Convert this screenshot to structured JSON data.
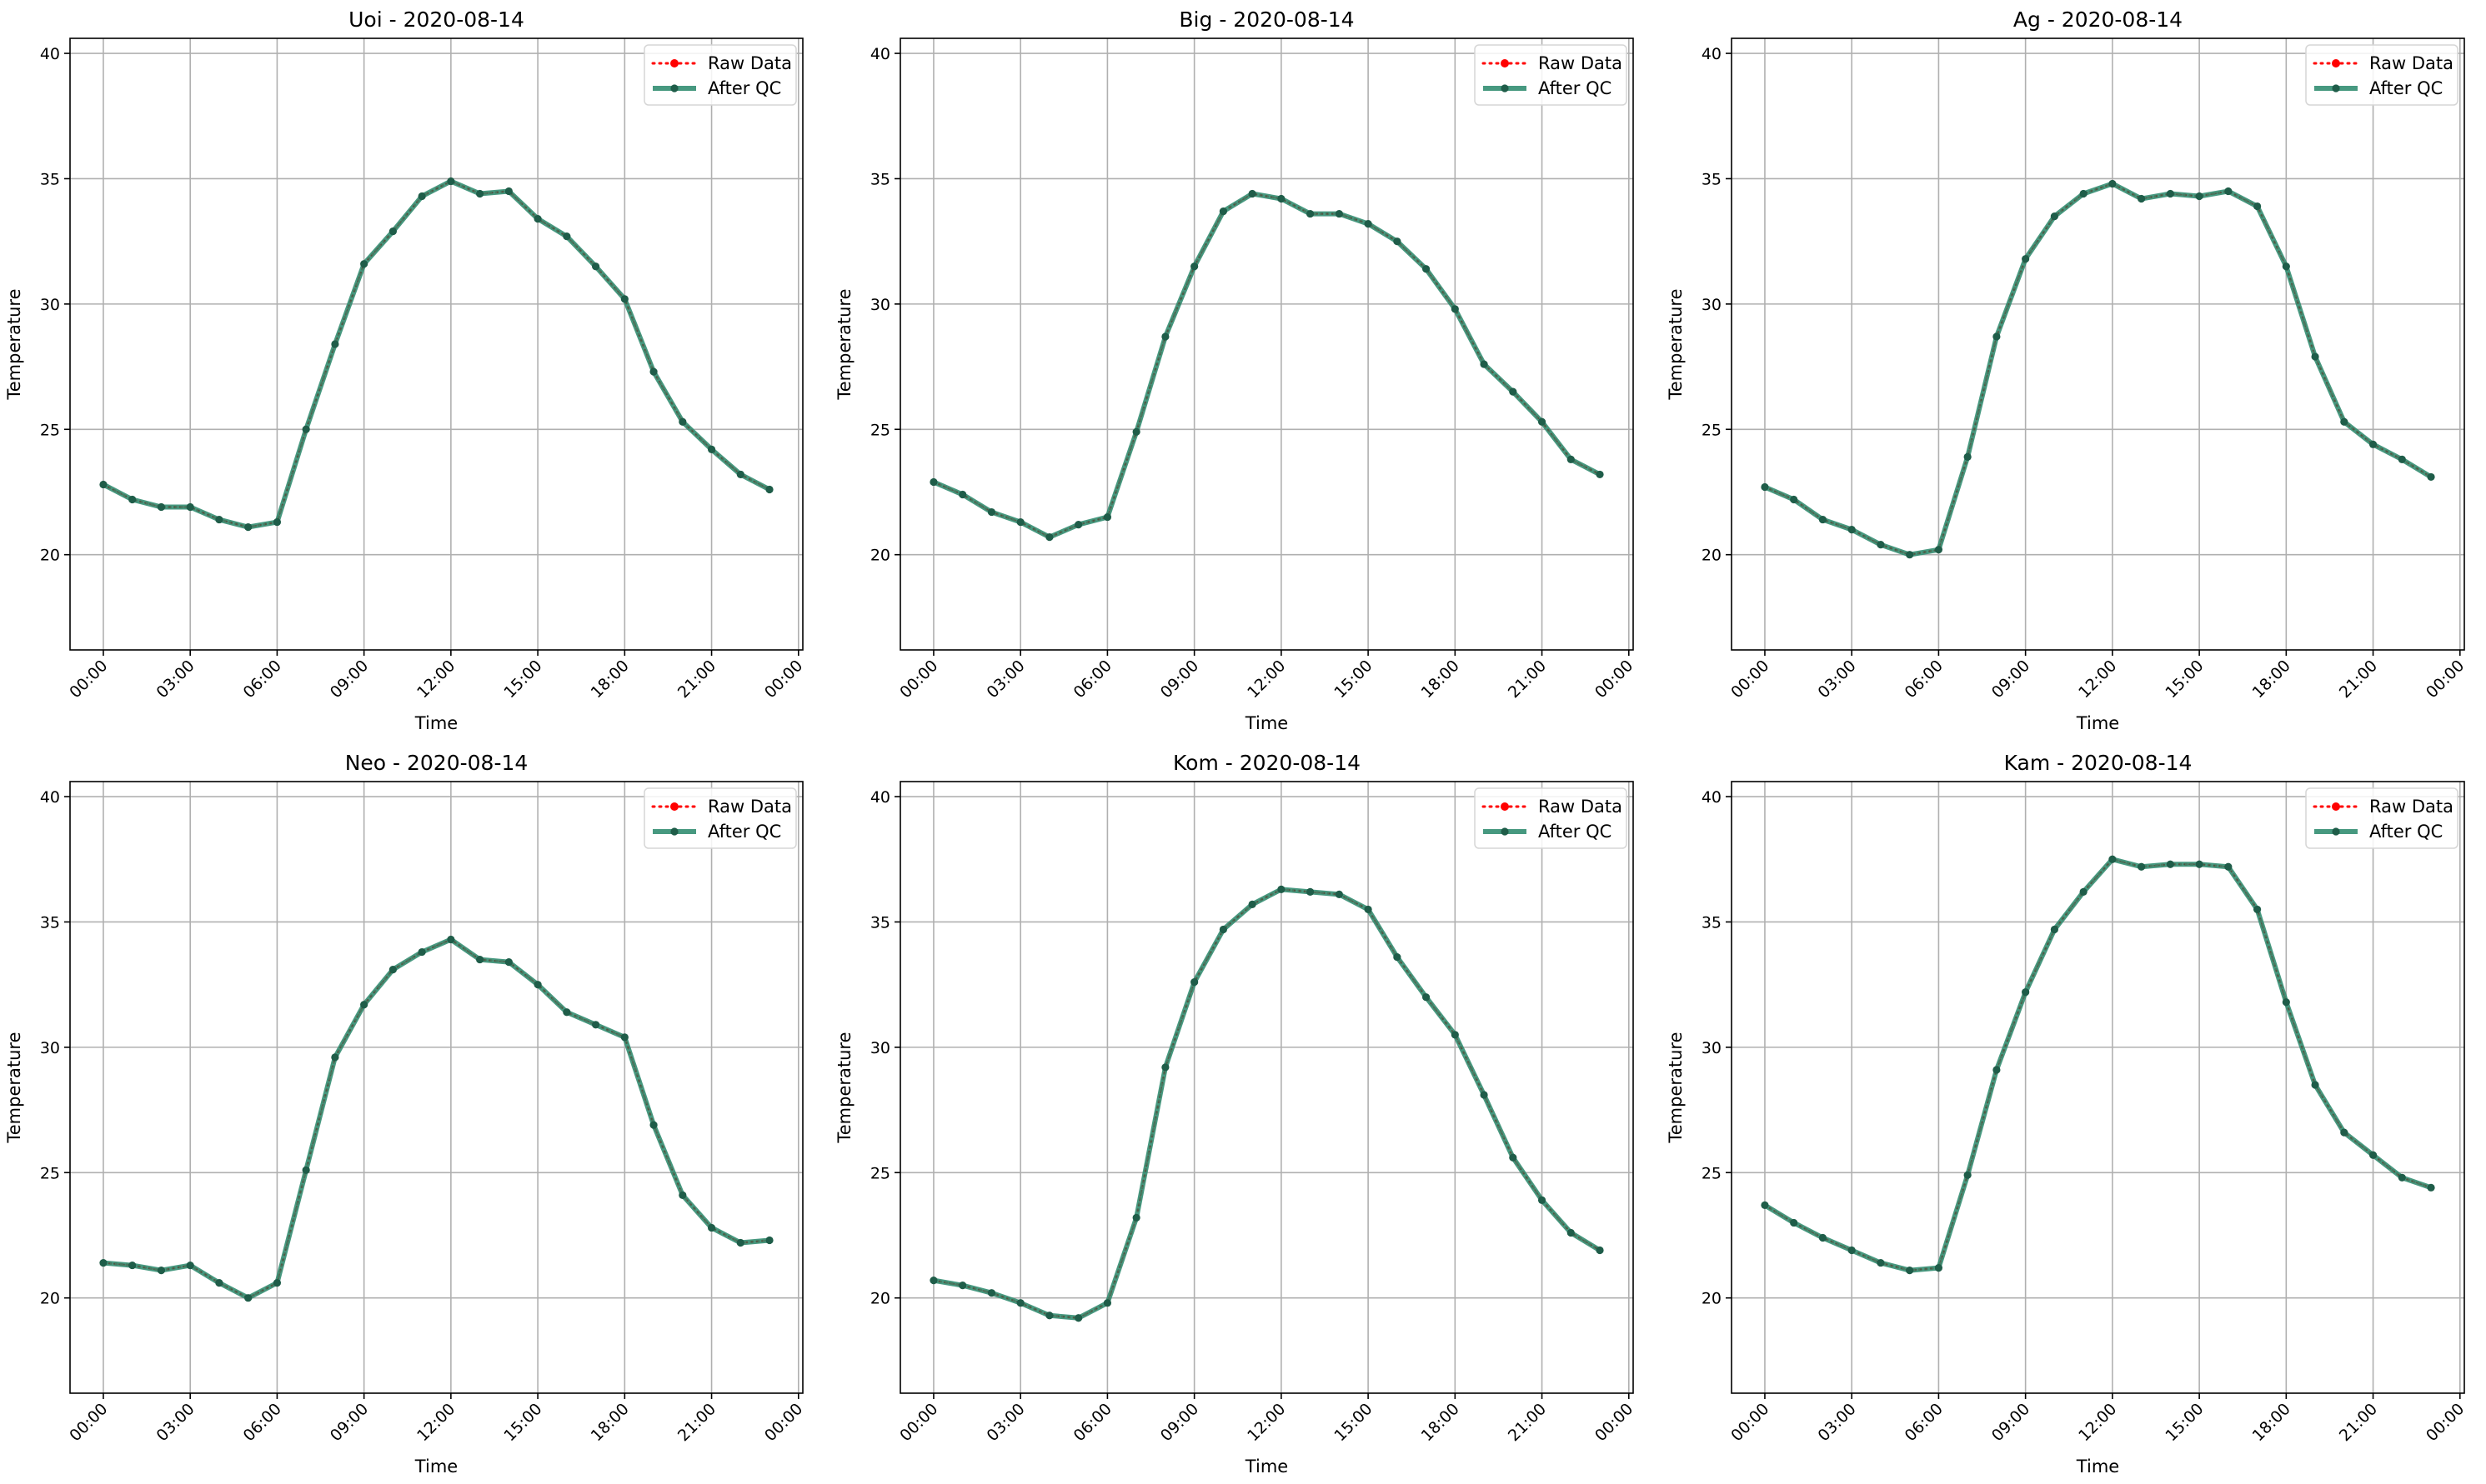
{
  "figure": {
    "colors": {
      "raw": "#ff0000",
      "qc": "#2e8b6e",
      "qc_marker": "#1f5d49",
      "grid": "#b0b0b0",
      "frame": "#000000"
    }
  },
  "chart_data": [
    {
      "type": "line",
      "title": "Uoi - 2020-08-14",
      "xlabel": "Time",
      "ylabel": "Temperature",
      "xlim_hours": [
        -1.15,
        24.15
      ],
      "ylim": [
        16.2,
        40.6
      ],
      "yticks": [
        20,
        25,
        30,
        35,
        40
      ],
      "xticks": [
        "00:00",
        "03:00",
        "06:00",
        "09:00",
        "12:00",
        "15:00",
        "18:00",
        "21:00",
        "00:00"
      ],
      "grid": true,
      "legend_position": "upper right",
      "x_hours": [
        0,
        1,
        2,
        3,
        4,
        5,
        6,
        7,
        8,
        9,
        10,
        11,
        12,
        13,
        14,
        15,
        16,
        17,
        18,
        19,
        20,
        21,
        22,
        23
      ],
      "series": [
        {
          "name": "Raw Data",
          "style": "dotted-markers",
          "values": [
            22.8,
            22.2,
            21.9,
            21.9,
            21.4,
            21.1,
            21.3,
            25.0,
            28.4,
            31.6,
            32.9,
            34.3,
            34.9,
            34.4,
            34.5,
            33.4,
            32.7,
            31.5,
            30.2,
            27.3,
            25.3,
            24.2,
            23.2,
            22.6
          ]
        },
        {
          "name": "After QC",
          "style": "solid-markers",
          "values": [
            22.8,
            22.2,
            21.9,
            21.9,
            21.4,
            21.1,
            21.3,
            25.0,
            28.4,
            31.6,
            32.9,
            34.3,
            34.9,
            34.4,
            34.5,
            33.4,
            32.7,
            31.5,
            30.2,
            27.3,
            25.3,
            24.2,
            23.2,
            22.6
          ]
        }
      ]
    },
    {
      "type": "line",
      "title": "Big - 2020-08-14",
      "xlabel": "Time",
      "ylabel": "Temperature",
      "xlim_hours": [
        -1.15,
        24.15
      ],
      "ylim": [
        16.2,
        40.6
      ],
      "yticks": [
        20,
        25,
        30,
        35,
        40
      ],
      "xticks": [
        "00:00",
        "03:00",
        "06:00",
        "09:00",
        "12:00",
        "15:00",
        "18:00",
        "21:00",
        "00:00"
      ],
      "grid": true,
      "legend_position": "upper right",
      "x_hours": [
        0,
        1,
        2,
        3,
        4,
        5,
        6,
        7,
        8,
        9,
        10,
        11,
        12,
        13,
        14,
        15,
        16,
        17,
        18,
        19,
        20,
        21,
        22,
        23
      ],
      "series": [
        {
          "name": "Raw Data",
          "style": "dotted-markers",
          "values": [
            22.9,
            22.4,
            21.7,
            21.3,
            20.7,
            21.2,
            21.5,
            24.9,
            28.7,
            31.5,
            33.7,
            34.4,
            34.2,
            33.6,
            33.6,
            33.2,
            32.5,
            31.4,
            29.8,
            27.6,
            26.5,
            25.3,
            23.8,
            23.2
          ]
        },
        {
          "name": "After QC",
          "style": "solid-markers",
          "values": [
            22.9,
            22.4,
            21.7,
            21.3,
            20.7,
            21.2,
            21.5,
            24.9,
            28.7,
            31.5,
            33.7,
            34.4,
            34.2,
            33.6,
            33.6,
            33.2,
            32.5,
            31.4,
            29.8,
            27.6,
            26.5,
            25.3,
            23.8,
            23.2
          ]
        }
      ]
    },
    {
      "type": "line",
      "title": "Ag - 2020-08-14",
      "xlabel": "Time",
      "ylabel": "Temperature",
      "xlim_hours": [
        -1.15,
        24.15
      ],
      "ylim": [
        16.2,
        40.6
      ],
      "yticks": [
        20,
        25,
        30,
        35,
        40
      ],
      "xticks": [
        "00:00",
        "03:00",
        "06:00",
        "09:00",
        "12:00",
        "15:00",
        "18:00",
        "21:00",
        "00:00"
      ],
      "grid": true,
      "legend_position": "upper right",
      "x_hours": [
        0,
        1,
        2,
        3,
        4,
        5,
        6,
        7,
        8,
        9,
        10,
        11,
        12,
        13,
        14,
        15,
        16,
        17,
        18,
        19,
        20,
        21,
        22,
        23
      ],
      "series": [
        {
          "name": "Raw Data",
          "style": "dotted-markers",
          "values": [
            22.7,
            22.2,
            21.4,
            21.0,
            20.4,
            20.0,
            20.2,
            23.9,
            28.7,
            31.8,
            33.5,
            34.4,
            34.8,
            34.2,
            34.4,
            34.3,
            34.5,
            33.9,
            31.5,
            27.9,
            25.3,
            24.4,
            23.8,
            23.1
          ]
        },
        {
          "name": "After QC",
          "style": "solid-markers",
          "values": [
            22.7,
            22.2,
            21.4,
            21.0,
            20.4,
            20.0,
            20.2,
            23.9,
            28.7,
            31.8,
            33.5,
            34.4,
            34.8,
            34.2,
            34.4,
            34.3,
            34.5,
            33.9,
            31.5,
            27.9,
            25.3,
            24.4,
            23.8,
            23.1
          ]
        }
      ]
    },
    {
      "type": "line",
      "title": "Neo - 2020-08-14",
      "xlabel": "Time",
      "ylabel": "Temperature",
      "xlim_hours": [
        -1.15,
        24.15
      ],
      "ylim": [
        16.2,
        40.6
      ],
      "yticks": [
        20,
        25,
        30,
        35,
        40
      ],
      "xticks": [
        "00:00",
        "03:00",
        "06:00",
        "09:00",
        "12:00",
        "15:00",
        "18:00",
        "21:00",
        "00:00"
      ],
      "grid": true,
      "legend_position": "upper right",
      "x_hours": [
        0,
        1,
        2,
        3,
        4,
        5,
        6,
        7,
        8,
        9,
        10,
        11,
        12,
        13,
        14,
        15,
        16,
        17,
        18,
        19,
        20,
        21,
        22,
        23
      ],
      "series": [
        {
          "name": "Raw Data",
          "style": "dotted-markers",
          "values": [
            21.4,
            21.3,
            21.1,
            21.3,
            20.6,
            20.0,
            20.6,
            25.1,
            29.6,
            31.7,
            33.1,
            33.8,
            34.3,
            33.5,
            33.4,
            32.5,
            31.4,
            30.9,
            30.4,
            26.9,
            24.1,
            22.8,
            22.2,
            22.3
          ]
        },
        {
          "name": "After QC",
          "style": "solid-markers",
          "values": [
            21.4,
            21.3,
            21.1,
            21.3,
            20.6,
            20.0,
            20.6,
            25.1,
            29.6,
            31.7,
            33.1,
            33.8,
            34.3,
            33.5,
            33.4,
            32.5,
            31.4,
            30.9,
            30.4,
            26.9,
            24.1,
            22.8,
            22.2,
            22.3
          ]
        }
      ]
    },
    {
      "type": "line",
      "title": "Kom - 2020-08-14",
      "xlabel": "Time",
      "ylabel": "Temperature",
      "xlim_hours": [
        -1.15,
        24.15
      ],
      "ylim": [
        16.2,
        40.6
      ],
      "yticks": [
        20,
        25,
        30,
        35,
        40
      ],
      "xticks": [
        "00:00",
        "03:00",
        "06:00",
        "09:00",
        "12:00",
        "15:00",
        "18:00",
        "21:00",
        "00:00"
      ],
      "grid": true,
      "legend_position": "upper right",
      "x_hours": [
        0,
        1,
        2,
        3,
        4,
        5,
        6,
        7,
        8,
        9,
        10,
        11,
        12,
        13,
        14,
        15,
        16,
        17,
        18,
        19,
        20,
        21,
        22,
        23
      ],
      "series": [
        {
          "name": "Raw Data",
          "style": "dotted-markers",
          "values": [
            20.7,
            20.5,
            20.2,
            19.8,
            19.3,
            19.2,
            19.8,
            23.2,
            29.2,
            32.6,
            34.7,
            35.7,
            36.3,
            36.2,
            36.1,
            35.5,
            33.6,
            32.0,
            30.5,
            28.1,
            25.6,
            23.9,
            22.6,
            21.9
          ]
        },
        {
          "name": "After QC",
          "style": "solid-markers",
          "values": [
            20.7,
            20.5,
            20.2,
            19.8,
            19.3,
            19.2,
            19.8,
            23.2,
            29.2,
            32.6,
            34.7,
            35.7,
            36.3,
            36.2,
            36.1,
            35.5,
            33.6,
            32.0,
            30.5,
            28.1,
            25.6,
            23.9,
            22.6,
            21.9
          ]
        }
      ]
    },
    {
      "type": "line",
      "title": "Kam - 2020-08-14",
      "xlabel": "Time",
      "ylabel": "Temperature",
      "xlim_hours": [
        -1.15,
        24.15
      ],
      "ylim": [
        16.2,
        40.6
      ],
      "yticks": [
        20,
        25,
        30,
        35,
        40
      ],
      "xticks": [
        "00:00",
        "03:00",
        "06:00",
        "09:00",
        "12:00",
        "15:00",
        "18:00",
        "21:00",
        "00:00"
      ],
      "grid": true,
      "legend_position": "upper right",
      "x_hours": [
        0,
        1,
        2,
        3,
        4,
        5,
        6,
        7,
        8,
        9,
        10,
        11,
        12,
        13,
        14,
        15,
        16,
        17,
        18,
        19,
        20,
        21,
        22,
        23
      ],
      "series": [
        {
          "name": "Raw Data",
          "style": "dotted-markers",
          "values": [
            23.7,
            23.0,
            22.4,
            21.9,
            21.4,
            21.1,
            21.2,
            24.9,
            29.1,
            32.2,
            34.7,
            36.2,
            37.5,
            37.2,
            37.3,
            37.3,
            37.2,
            35.5,
            31.8,
            28.5,
            26.6,
            25.7,
            24.8,
            24.4
          ]
        },
        {
          "name": "After QC",
          "style": "solid-markers",
          "values": [
            23.7,
            23.0,
            22.4,
            21.9,
            21.4,
            21.1,
            21.2,
            24.9,
            29.1,
            32.2,
            34.7,
            36.2,
            37.5,
            37.2,
            37.3,
            37.3,
            37.2,
            35.5,
            31.8,
            28.5,
            26.6,
            25.7,
            24.8,
            24.4
          ]
        }
      ]
    }
  ]
}
